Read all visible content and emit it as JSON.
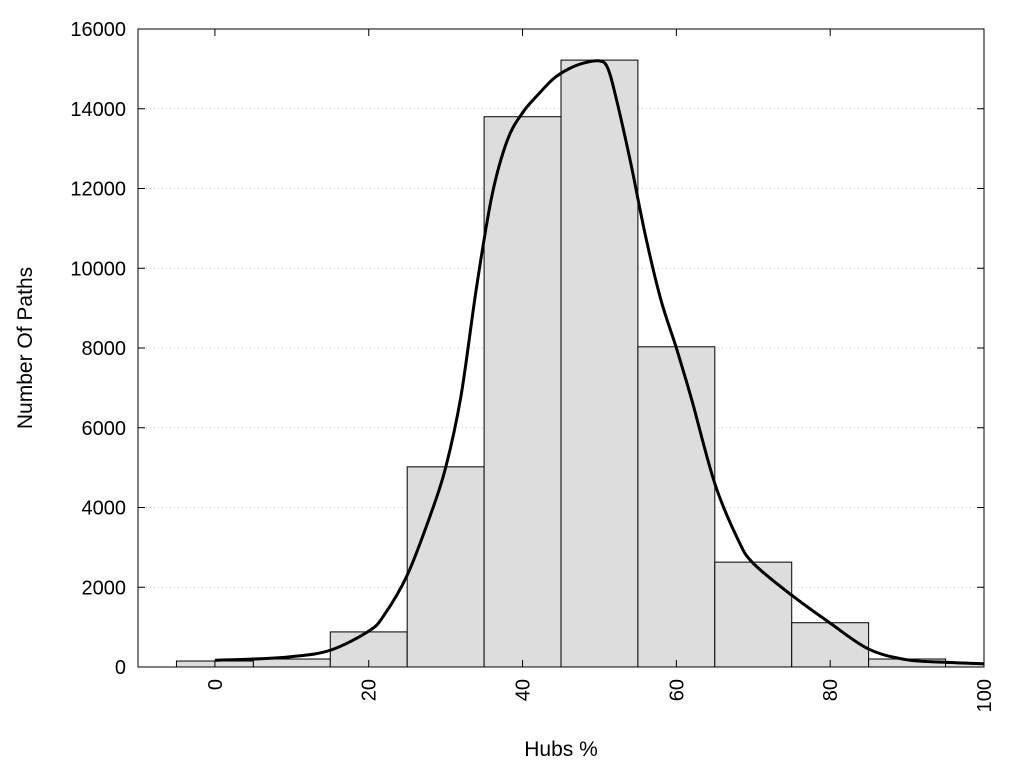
{
  "chart_data": {
    "type": "bar",
    "xlabel": "Hubs %",
    "ylabel": "Number Of Paths",
    "xlim": [
      -10,
      100
    ],
    "ylim": [
      0,
      16000
    ],
    "x_ticks": [
      0,
      20,
      40,
      60,
      80,
      100
    ],
    "y_ticks": [
      0,
      2000,
      4000,
      6000,
      8000,
      10000,
      12000,
      14000,
      16000
    ],
    "grid": {
      "y": true,
      "x": false,
      "style": "dotted"
    },
    "bin_width": 10,
    "bars": {
      "x": [
        0,
        10,
        20,
        30,
        40,
        50,
        60,
        70,
        80,
        90,
        100
      ],
      "values": [
        150,
        200,
        880,
        5020,
        13800,
        15220,
        8030,
        2630,
        1110,
        200,
        90
      ],
      "color": "#dddddd",
      "edge_color": "#000000"
    },
    "density_curve": {
      "color": "#000000",
      "x": [
        0,
        5,
        10,
        15,
        20,
        22,
        25,
        28,
        30,
        32,
        34,
        36,
        38,
        40,
        42,
        44,
        46,
        48,
        50,
        51,
        52,
        54,
        56,
        58,
        60,
        62,
        65,
        68,
        70,
        75,
        80,
        85,
        90,
        95,
        100
      ],
      "y": [
        170,
        200,
        260,
        420,
        900,
        1300,
        2300,
        3800,
        5000,
        6800,
        9500,
        11800,
        13200,
        13900,
        14350,
        14750,
        15000,
        15150,
        15200,
        15050,
        14400,
        12700,
        10800,
        9200,
        8000,
        6700,
        4600,
        3200,
        2600,
        1800,
        1100,
        450,
        180,
        120,
        80
      ]
    }
  }
}
